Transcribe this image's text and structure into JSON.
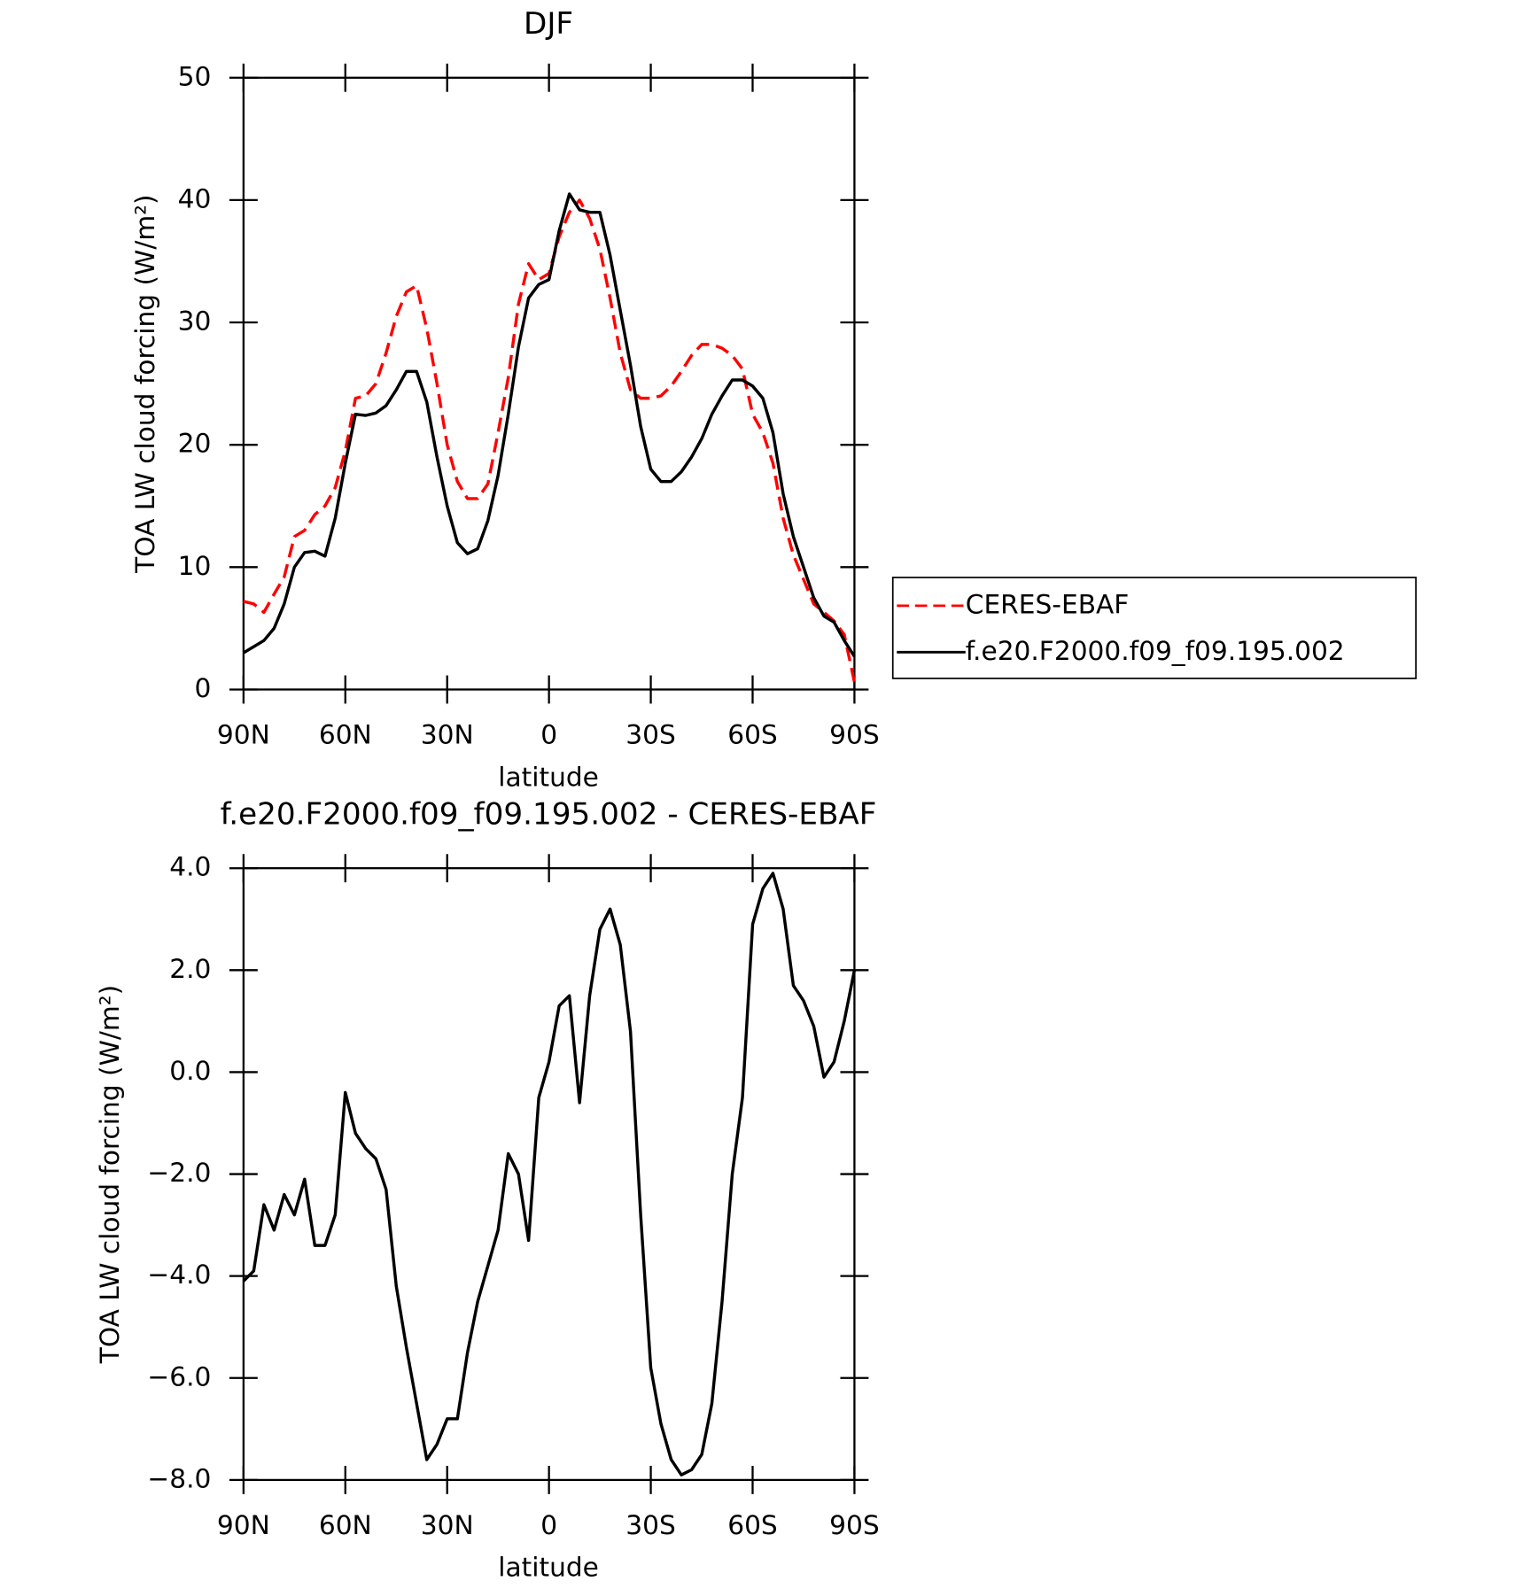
{
  "chart_data": [
    {
      "type": "line",
      "title": "DJF",
      "xlabel": "latitude",
      "ylabel": "TOA LW cloud forcing (W/m²)",
      "x": [
        90,
        87,
        84,
        81,
        78,
        75,
        72,
        69,
        66,
        63,
        60,
        57,
        54,
        51,
        48,
        45,
        42,
        39,
        36,
        33,
        30,
        27,
        24,
        21,
        18,
        15,
        12,
        9,
        6,
        3,
        0,
        -3,
        -6,
        -9,
        -12,
        -15,
        -18,
        -21,
        -24,
        -27,
        -30,
        -33,
        -36,
        -39,
        -42,
        -45,
        -48,
        -51,
        -54,
        -57,
        -60,
        -63,
        -66,
        -69,
        -72,
        -75,
        -78,
        -81,
        -84,
        -87,
        -90
      ],
      "series": [
        {
          "name": "CERES-EBAF",
          "color": "#ff0000",
          "dash": true,
          "values": [
            7.2,
            7.0,
            6.3,
            7.8,
            9.2,
            12.5,
            13.0,
            14.3,
            15.0,
            16.5,
            19.5,
            23.8,
            24.0,
            25.0,
            27.5,
            30.5,
            32.5,
            33.0,
            29.5,
            25.0,
            20.0,
            17.0,
            15.6,
            15.6,
            16.8,
            21.0,
            25.5,
            31.5,
            34.8,
            33.5,
            34.0,
            37.0,
            39.0,
            40.0,
            38.5,
            36.0,
            32.0,
            27.5,
            24.5,
            23.8,
            23.8,
            24.0,
            24.8,
            26.0,
            27.3,
            28.2,
            28.2,
            27.9,
            27.3,
            26.2,
            22.5,
            21.0,
            18.5,
            14.0,
            11.0,
            9.0,
            7.0,
            6.3,
            5.6,
            4.5,
            0.6
          ]
        },
        {
          "name": "f.e20.F2000.f09_f09.195.002",
          "color": "#000000",
          "dash": false,
          "values": [
            3.0,
            3.5,
            4.0,
            5.0,
            7.0,
            10.0,
            11.2,
            11.3,
            10.9,
            14.0,
            18.5,
            22.5,
            22.4,
            22.6,
            23.2,
            24.5,
            26.0,
            26.0,
            23.5,
            19.0,
            15.0,
            12.0,
            11.1,
            11.5,
            13.8,
            17.5,
            22.5,
            28.0,
            32.0,
            33.1,
            33.5,
            37.5,
            40.5,
            39.2,
            39.0,
            39.0,
            35.5,
            31.0,
            26.5,
            21.5,
            18.0,
            17.0,
            17.0,
            17.8,
            19.0,
            20.5,
            22.5,
            24.0,
            25.3,
            25.3,
            24.8,
            23.8,
            21.0,
            16.0,
            12.5,
            10.0,
            7.5,
            6.0,
            5.5,
            4.0,
            2.7
          ]
        }
      ],
      "xlim": [
        90,
        -90
      ],
      "xticks": [
        {
          "value": 90,
          "label": "90N"
        },
        {
          "value": 60,
          "label": "60N"
        },
        {
          "value": 30,
          "label": "30N"
        },
        0,
        {
          "value": -30,
          "label": "30S"
        },
        {
          "value": -60,
          "label": "60S"
        },
        {
          "value": -90,
          "label": "90S"
        }
      ],
      "ylim": [
        0,
        50
      ],
      "yticks": [
        0,
        10,
        20,
        30,
        40,
        50
      ],
      "legend": "right"
    },
    {
      "type": "line",
      "title": "f.e20.F2000.f09_f09.195.002 - CERES-EBAF",
      "xlabel": "latitude",
      "ylabel": "TOA LW cloud forcing (W/m²)",
      "x": [
        90,
        87,
        84,
        81,
        78,
        75,
        72,
        69,
        66,
        63,
        60,
        57,
        54,
        51,
        48,
        45,
        42,
        39,
        36,
        33,
        30,
        27,
        24,
        21,
        18,
        15,
        12,
        9,
        6,
        3,
        0,
        -3,
        -6,
        -9,
        -12,
        -15,
        -18,
        -21,
        -24,
        -27,
        -30,
        -33,
        -36,
        -39,
        -42,
        -45,
        -48,
        -51,
        -54,
        -57,
        -60,
        -63,
        -66,
        -69,
        -72,
        -75,
        -78,
        -81,
        -84,
        -87,
        -90
      ],
      "series": [
        {
          "color": "#000000",
          "dash": false,
          "values": [
            -4.1,
            -3.9,
            -2.6,
            -3.1,
            -2.4,
            -2.8,
            -2.1,
            -3.4,
            -3.4,
            -2.8,
            -0.4,
            -1.2,
            -1.5,
            -1.7,
            -2.3,
            -4.2,
            -5.4,
            -6.5,
            -7.6,
            -7.3,
            -6.8,
            -6.8,
            -5.5,
            -4.5,
            -3.8,
            -3.1,
            -1.6,
            -2.0,
            -3.3,
            -0.5,
            0.2,
            1.3,
            1.5,
            -0.6,
            1.5,
            2.8,
            3.2,
            2.5,
            0.8,
            -2.8,
            -5.8,
            -6.9,
            -7.6,
            -7.9,
            -7.8,
            -7.5,
            -6.5,
            -4.5,
            -2.0,
            -0.5,
            2.9,
            3.6,
            3.9,
            3.2,
            1.7,
            1.4,
            0.9,
            -0.1,
            0.2,
            1.0,
            2.0
          ]
        }
      ],
      "xlim": [
        90,
        -90
      ],
      "xticks": [
        {
          "value": 90,
          "label": "90N"
        },
        {
          "value": 60,
          "label": "60N"
        },
        {
          "value": 30,
          "label": "30N"
        },
        0,
        {
          "value": -30,
          "label": "30S"
        },
        {
          "value": -60,
          "label": "60S"
        },
        {
          "value": -90,
          "label": "90S"
        }
      ],
      "ylim": [
        -8,
        4
      ],
      "yticks": [
        {
          "value": -8,
          "label": "−8.0"
        },
        {
          "value": -6,
          "label": "−6.0"
        },
        {
          "value": -4,
          "label": "−4.0"
        },
        {
          "value": -2,
          "label": "−2.0"
        },
        {
          "value": 0,
          "label": "0.0"
        },
        {
          "value": 2,
          "label": "2.0"
        },
        {
          "value": 4,
          "label": "4.0"
        }
      ]
    }
  ]
}
